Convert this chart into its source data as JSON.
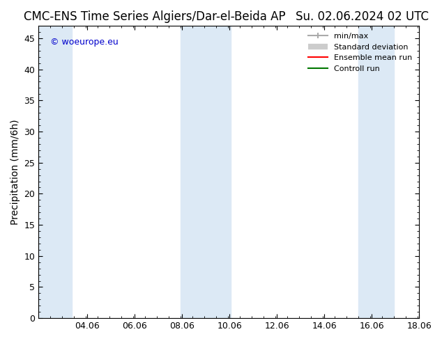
{
  "title": "CMC-ENS Time Series Algiers/Dar-el-Beida AP",
  "title_right": "Su. 02.06.2024 02 UTC",
  "ylabel": "Precipitation (mm/6h)",
  "watermark": "© woeurope.eu",
  "xlim_left": 2.0,
  "xlim_right": 18.06,
  "ylim_bottom": 0,
  "ylim_top": 47,
  "x_ticks": [
    4.06,
    6.06,
    8.06,
    10.06,
    12.06,
    14.06,
    16.06,
    18.06
  ],
  "x_tick_labels": [
    "04.06",
    "06.06",
    "08.06",
    "10.06",
    "12.06",
    "14.06",
    "16.06",
    "18.06"
  ],
  "y_ticks": [
    0,
    5,
    10,
    15,
    20,
    25,
    30,
    35,
    40,
    45
  ],
  "shaded_bands": [
    {
      "x_start": 2.0,
      "x_end": 3.4
    },
    {
      "x_start": 8.0,
      "x_end": 10.1
    },
    {
      "x_start": 15.5,
      "x_end": 17.0
    }
  ],
  "band_color": "#dce9f5",
  "background_color": "#ffffff",
  "legend_items": [
    {
      "label": "min/max",
      "color": "#aaaaaa",
      "lw": 1.5,
      "style": "|-|"
    },
    {
      "label": "Standard deviation",
      "color": "#cccccc",
      "lw": 6
    },
    {
      "label": "Ensemble mean run",
      "color": "#ff0000",
      "lw": 1.5
    },
    {
      "label": "Controll run",
      "color": "#007700",
      "lw": 1.5
    }
  ],
  "title_fontsize": 12,
  "tick_fontsize": 9,
  "legend_fontsize": 8,
  "ylabel_fontsize": 10,
  "watermark_color": "#0000cc",
  "watermark_fontsize": 9
}
